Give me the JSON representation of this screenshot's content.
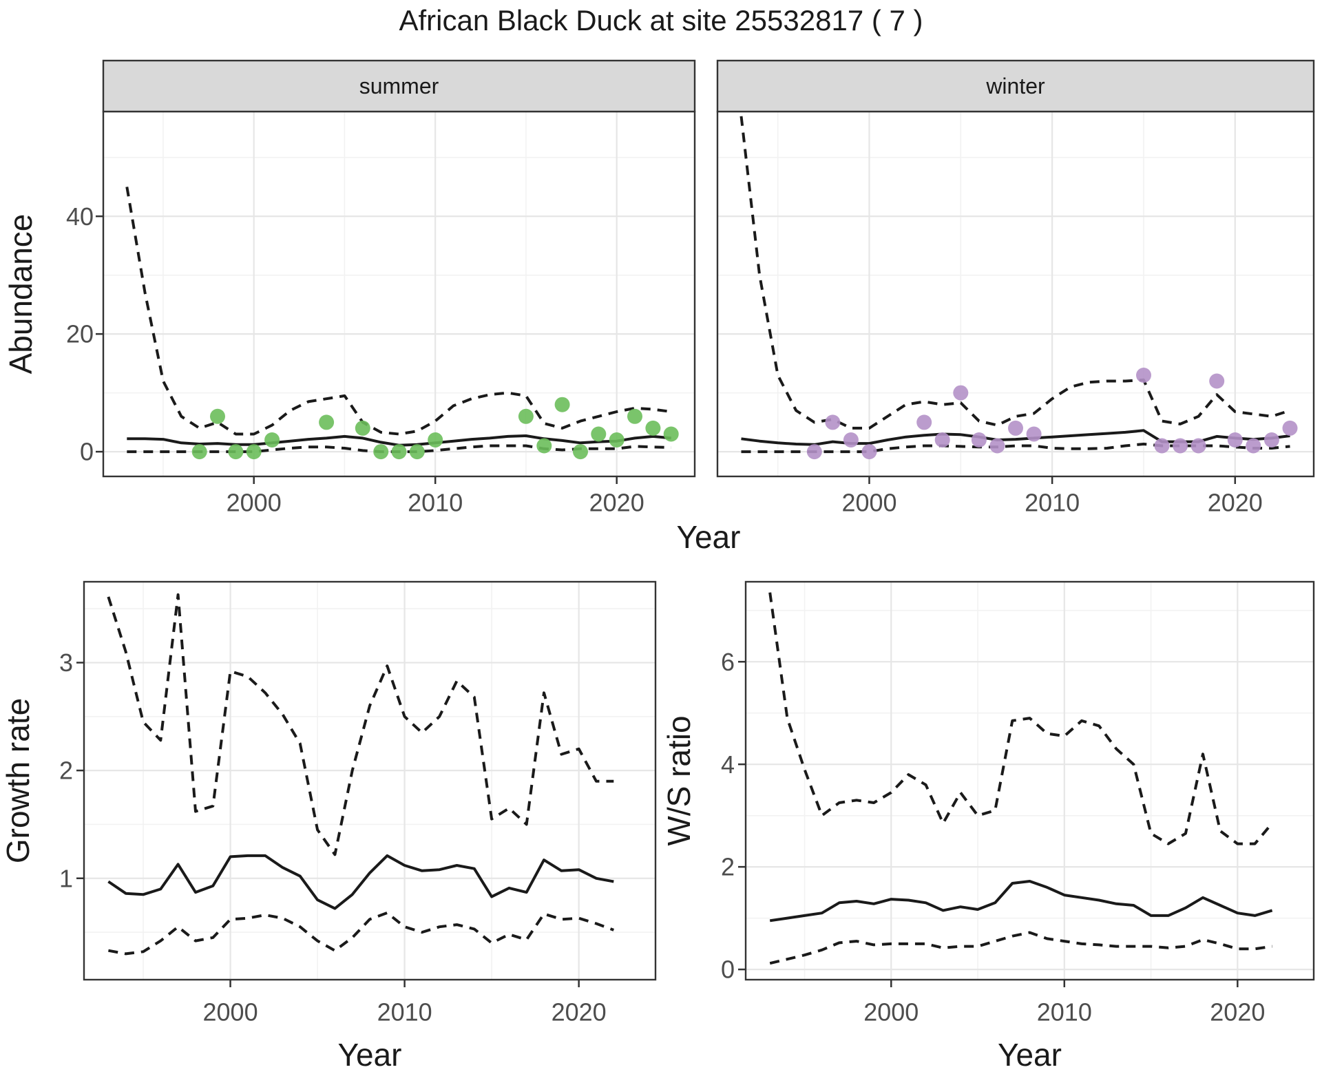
{
  "title": "African Black Duck at site 25532817 ( 7 )",
  "colors": {
    "summer_point": "#6CBE5B",
    "winter_point": "#B491C8",
    "line": "#1a1a1a",
    "strip_bg": "#D9D9D9",
    "panel_border": "#333333",
    "grid_major": "#E6E6E6",
    "grid_minor": "#F2F2F2",
    "tick_text": "#4d4d4d"
  },
  "chart_data": [
    {
      "id": "abundance_by_season",
      "type": "line",
      "ylabel": "Abundance",
      "xlabel": "Year",
      "xlim": [
        1991.7,
        2024.3
      ],
      "ylim": [
        -4.2,
        57.8
      ],
      "xticks": [
        2000,
        2010,
        2020
      ],
      "xminor": [
        1995,
        2005,
        2015
      ],
      "yticks": [
        0,
        20,
        40
      ],
      "yminor": [
        10,
        30,
        50
      ],
      "grid": "on",
      "legend": "none",
      "x": [
        1993,
        1994,
        1995,
        1996,
        1997,
        1998,
        1999,
        2000,
        2001,
        2002,
        2003,
        2004,
        2005,
        2006,
        2007,
        2008,
        2009,
        2010,
        2011,
        2012,
        2013,
        2014,
        2015,
        2016,
        2017,
        2018,
        2019,
        2020,
        2021,
        2022,
        2023
      ],
      "facets": [
        {
          "label": "summer",
          "point_color": "#6CBE5B",
          "series": [
            {
              "name": "upper_ci",
              "style": "dashed",
              "values": [
                45,
                27,
                12,
                6,
                4,
                5,
                3,
                3,
                4.5,
                7,
                8.5,
                9,
                9.5,
                5,
                3.3,
                3,
                3.5,
                5.2,
                7.8,
                9,
                9.7,
                10,
                9.5,
                4.8,
                4,
                5.2,
                6,
                6.8,
                7.4,
                7.2,
                6.8
              ]
            },
            {
              "name": "mean",
              "style": "solid",
              "values": [
                2.2,
                2.2,
                2.1,
                1.5,
                1.3,
                1.4,
                1.2,
                1.2,
                1.5,
                1.8,
                2.1,
                2.3,
                2.6,
                2.3,
                1.6,
                1.1,
                1.2,
                1.5,
                1.8,
                2.1,
                2.3,
                2.6,
                2.7,
                2.2,
                1.9,
                1.5,
                1.7,
                1.8,
                2.3,
                2.6,
                2.3
              ]
            },
            {
              "name": "lower_ci",
              "style": "dashed",
              "values": [
                0,
                0,
                0,
                0,
                0,
                0,
                0,
                0,
                0.3,
                0.6,
                0.8,
                0.8,
                0.6,
                0.2,
                0,
                0,
                0,
                0.2,
                0.5,
                0.8,
                1,
                1,
                1,
                0.5,
                0.3,
                0.5,
                0.5,
                0.5,
                0.9,
                0.8,
                0.7
              ]
            }
          ],
          "points": [
            [
              1997,
              0
            ],
            [
              1998,
              6
            ],
            [
              1999,
              0
            ],
            [
              2000,
              0
            ],
            [
              2001,
              2
            ],
            [
              2004,
              5
            ],
            [
              2006,
              4
            ],
            [
              2007,
              0
            ],
            [
              2008,
              0
            ],
            [
              2009,
              0
            ],
            [
              2010,
              2
            ],
            [
              2015,
              6
            ],
            [
              2016,
              1
            ],
            [
              2017,
              8
            ],
            [
              2018,
              0
            ],
            [
              2019,
              3
            ],
            [
              2020,
              2
            ],
            [
              2021,
              6
            ],
            [
              2022,
              4
            ],
            [
              2023,
              3
            ]
          ]
        },
        {
          "label": "winter",
          "point_color": "#B491C8",
          "series": [
            {
              "name": "upper_ci",
              "style": "dashed",
              "values": [
                57,
                30,
                13,
                7,
                5,
                5.5,
                4,
                4,
                6,
                8,
                8.5,
                8,
                8.3,
                5.2,
                4.5,
                6,
                6.5,
                9,
                11,
                11.8,
                12,
                12,
                12.2,
                5.2,
                4.7,
                6,
                9.7,
                6.8,
                6.4,
                6,
                7
              ]
            },
            {
              "name": "mean",
              "style": "solid",
              "values": [
                2.2,
                1.8,
                1.5,
                1.3,
                1.2,
                1.7,
                1.4,
                1.4,
                2,
                2.5,
                2.8,
                3,
                2.9,
                2.5,
                2,
                2.1,
                2.3,
                2.5,
                2.7,
                2.9,
                3.1,
                3.3,
                3.6,
                1.7,
                1.7,
                1.7,
                2.6,
                2.3,
                2.1,
                2.3,
                2.7
              ]
            },
            {
              "name": "lower_ci",
              "style": "dashed",
              "values": [
                0,
                0,
                0,
                0,
                0,
                0,
                0,
                0,
                0.5,
                0.8,
                1,
                1,
                0.9,
                0.8,
                0.8,
                1,
                1,
                0.6,
                0.5,
                0.5,
                0.6,
                1,
                1.3,
                1,
                1,
                1,
                1,
                0.8,
                0.6,
                0.6,
                0.9
              ]
            }
          ],
          "points": [
            [
              1997,
              0
            ],
            [
              1998,
              5
            ],
            [
              1999,
              2
            ],
            [
              2000,
              0
            ],
            [
              2003,
              5
            ],
            [
              2004,
              2
            ],
            [
              2005,
              10
            ],
            [
              2006,
              2
            ],
            [
              2007,
              1
            ],
            [
              2008,
              4
            ],
            [
              2009,
              3
            ],
            [
              2015,
              13
            ],
            [
              2016,
              1
            ],
            [
              2017,
              1
            ],
            [
              2018,
              1
            ],
            [
              2019,
              12
            ],
            [
              2020,
              2
            ],
            [
              2021,
              1
            ],
            [
              2022,
              2
            ],
            [
              2023,
              4
            ]
          ]
        }
      ]
    },
    {
      "id": "growth_rate",
      "type": "line",
      "ylabel": "Growth rate",
      "xlabel": "Year",
      "xlim": [
        1991.6,
        2024.4
      ],
      "ylim": [
        0.06,
        3.75
      ],
      "xticks": [
        2000,
        2010,
        2020
      ],
      "xminor": [
        1995,
        2005,
        2015
      ],
      "yticks": [
        1,
        2,
        3
      ],
      "yminor": [
        0.5,
        1.5,
        2.5,
        3.5
      ],
      "grid": "on",
      "legend": "none",
      "x": [
        1993,
        1994,
        1995,
        1996,
        1997,
        1998,
        1999,
        2000,
        2001,
        2002,
        2003,
        2004,
        2005,
        2006,
        2007,
        2008,
        2009,
        2010,
        2011,
        2012,
        2013,
        2014,
        2015,
        2016,
        2017,
        2018,
        2019,
        2020,
        2021,
        2022
      ],
      "series": [
        {
          "name": "upper_ci",
          "style": "dashed",
          "values": [
            3.61,
            3.1,
            2.45,
            2.28,
            3.63,
            1.62,
            1.67,
            2.92,
            2.87,
            2.72,
            2.52,
            2.25,
            1.45,
            1.22,
            2.0,
            2.6,
            2.97,
            2.5,
            2.35,
            2.5,
            2.83,
            2.68,
            1.55,
            1.65,
            1.5,
            2.72,
            2.15,
            2.2,
            1.9,
            1.9
          ]
        },
        {
          "name": "mean",
          "style": "solid",
          "values": [
            0.97,
            0.86,
            0.85,
            0.9,
            1.13,
            0.87,
            0.93,
            1.2,
            1.21,
            1.21,
            1.1,
            1.02,
            0.8,
            0.72,
            0.85,
            1.05,
            1.21,
            1.12,
            1.07,
            1.08,
            1.12,
            1.09,
            0.83,
            0.91,
            0.87,
            1.17,
            1.07,
            1.08,
            1.0,
            0.97
          ]
        },
        {
          "name": "lower_ci",
          "style": "dashed",
          "values": [
            0.33,
            0.3,
            0.32,
            0.42,
            0.55,
            0.42,
            0.45,
            0.62,
            0.63,
            0.66,
            0.63,
            0.55,
            0.42,
            0.33,
            0.45,
            0.62,
            0.68,
            0.55,
            0.5,
            0.55,
            0.57,
            0.53,
            0.4,
            0.48,
            0.43,
            0.67,
            0.62,
            0.63,
            0.58,
            0.52
          ]
        }
      ],
      "points": []
    },
    {
      "id": "ws_ratio",
      "type": "line",
      "ylabel": "W/S ratio",
      "xlabel": "Year",
      "xlim": [
        1991.6,
        2024.4
      ],
      "ylim": [
        -0.2,
        7.56
      ],
      "xticks": [
        2000,
        2010,
        2020
      ],
      "xminor": [
        1995,
        2005,
        2015
      ],
      "yticks": [
        0,
        2,
        4,
        6
      ],
      "yminor": [
        1,
        3,
        5,
        7
      ],
      "grid": "on",
      "legend": "none",
      "x": [
        1993,
        1994,
        1995,
        1996,
        1997,
        1998,
        1999,
        2000,
        2001,
        2002,
        2003,
        2004,
        2005,
        2006,
        2007,
        2008,
        2009,
        2010,
        2011,
        2012,
        2013,
        2014,
        2015,
        2016,
        2017,
        2018,
        2019,
        2020,
        2021,
        2022
      ],
      "series": [
        {
          "name": "upper_ci",
          "style": "dashed",
          "values": [
            7.35,
            4.9,
            3.9,
            3.0,
            3.25,
            3.3,
            3.25,
            3.45,
            3.8,
            3.6,
            2.85,
            3.45,
            3.0,
            3.1,
            4.85,
            4.9,
            4.6,
            4.55,
            4.85,
            4.75,
            4.3,
            4.0,
            2.65,
            2.45,
            2.65,
            4.2,
            2.7,
            2.45,
            2.45,
            2.85
          ]
        },
        {
          "name": "mean",
          "style": "solid",
          "values": [
            0.95,
            1.0,
            1.05,
            1.1,
            1.3,
            1.33,
            1.28,
            1.37,
            1.35,
            1.3,
            1.15,
            1.22,
            1.17,
            1.3,
            1.68,
            1.72,
            1.6,
            1.45,
            1.4,
            1.35,
            1.28,
            1.25,
            1.05,
            1.05,
            1.2,
            1.4,
            1.25,
            1.1,
            1.05,
            1.15
          ]
        },
        {
          "name": "lower_ci",
          "style": "dashed",
          "values": [
            0.12,
            0.2,
            0.28,
            0.38,
            0.52,
            0.55,
            0.48,
            0.5,
            0.5,
            0.5,
            0.42,
            0.45,
            0.45,
            0.55,
            0.65,
            0.72,
            0.6,
            0.55,
            0.5,
            0.48,
            0.45,
            0.45,
            0.45,
            0.42,
            0.45,
            0.58,
            0.5,
            0.4,
            0.4,
            0.45
          ]
        }
      ],
      "points": []
    }
  ]
}
